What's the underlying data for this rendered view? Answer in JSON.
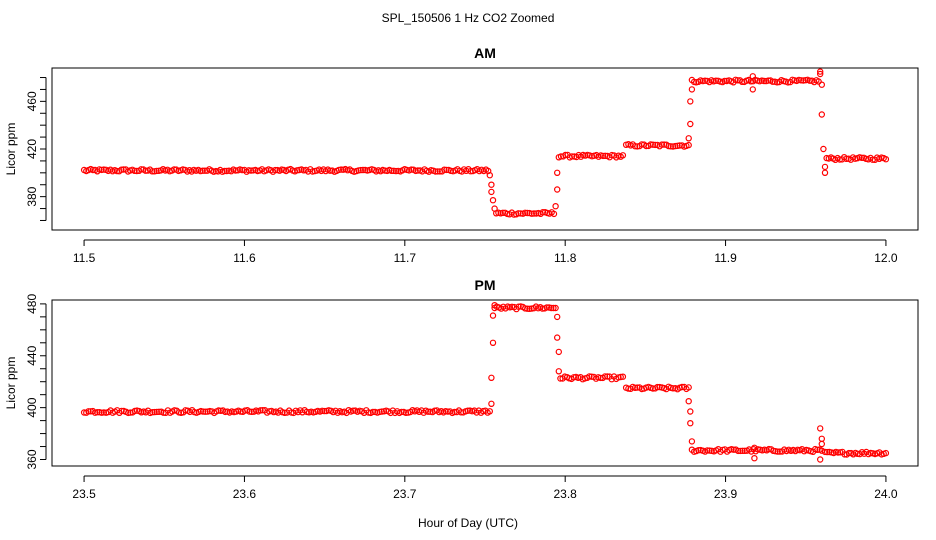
{
  "figure": {
    "title": "SPL_150506  1 Hz CO2 Zoomed",
    "xlabel": "Hour of Day (UTC)"
  },
  "chart_data": [
    {
      "type": "scatter",
      "title": "AM",
      "ylabel": "Licor ppm",
      "xlim": [
        11.48,
        12.02
      ],
      "ylim": [
        352,
        488
      ],
      "xticks": [
        11.5,
        11.6,
        11.7,
        11.8,
        11.9,
        12.0
      ],
      "xtick_labels": [
        "11.5",
        "11.6",
        "11.7",
        "11.8",
        "11.9",
        "12.0"
      ],
      "yticks": [
        380,
        420,
        460
      ],
      "ytick_labels": [
        "380",
        "420",
        "460"
      ],
      "grid": false,
      "marker_color": "#ff0000",
      "segments": [
        {
          "x_start": 11.5,
          "x_end": 11.752,
          "y": 402
        },
        {
          "x_start": 11.757,
          "x_end": 11.793,
          "y": 366
        },
        {
          "x_start": 11.796,
          "x_end": 11.836,
          "y": 414
        },
        {
          "x_start": 11.838,
          "x_end": 11.877,
          "y": 423
        },
        {
          "x_start": 11.879,
          "x_end": 11.958,
          "y": 477
        },
        {
          "x_start": 11.963,
          "x_end": 12.0,
          "y": 412
        }
      ],
      "outliers": [
        {
          "x": 11.753,
          "y": 398
        },
        {
          "x": 11.754,
          "y": 390
        },
        {
          "x": 11.754,
          "y": 384
        },
        {
          "x": 11.755,
          "y": 377
        },
        {
          "x": 11.756,
          "y": 370
        },
        {
          "x": 11.794,
          "y": 372
        },
        {
          "x": 11.795,
          "y": 386
        },
        {
          "x": 11.795,
          "y": 400
        },
        {
          "x": 11.877,
          "y": 429
        },
        {
          "x": 11.878,
          "y": 441
        },
        {
          "x": 11.878,
          "y": 460
        },
        {
          "x": 11.879,
          "y": 470
        },
        {
          "x": 11.917,
          "y": 481
        },
        {
          "x": 11.917,
          "y": 470
        },
        {
          "x": 11.959,
          "y": 485
        },
        {
          "x": 11.959,
          "y": 483
        },
        {
          "x": 11.96,
          "y": 474
        },
        {
          "x": 11.96,
          "y": 449
        },
        {
          "x": 11.961,
          "y": 420
        },
        {
          "x": 11.962,
          "y": 405
        },
        {
          "x": 11.962,
          "y": 400
        }
      ]
    },
    {
      "type": "scatter",
      "title": "PM",
      "ylabel": "Licor ppm",
      "xlim": [
        23.48,
        24.02
      ],
      "ylim": [
        355,
        483
      ],
      "xticks": [
        23.5,
        23.6,
        23.7,
        23.8,
        23.9,
        24.0
      ],
      "xtick_labels": [
        "23.5",
        "23.6",
        "23.7",
        "23.8",
        "23.9",
        "24.0"
      ],
      "yticks": [
        360,
        400,
        440,
        480
      ],
      "ytick_labels": [
        "360",
        "400",
        "440",
        "480"
      ],
      "grid": false,
      "marker_color": "#ff0000",
      "segments": [
        {
          "x_start": 23.5,
          "x_end": 23.753,
          "y": 397
        },
        {
          "x_start": 23.756,
          "x_end": 23.794,
          "y": 477
        },
        {
          "x_start": 23.797,
          "x_end": 23.836,
          "y": 423
        },
        {
          "x_start": 23.838,
          "x_end": 23.877,
          "y": 415
        },
        {
          "x_start": 23.879,
          "x_end": 23.96,
          "y": 367
        },
        {
          "x_start": 23.962,
          "x_end": 24.0,
          "y": 365
        }
      ],
      "outliers": [
        {
          "x": 23.754,
          "y": 403
        },
        {
          "x": 23.754,
          "y": 423
        },
        {
          "x": 23.755,
          "y": 450
        },
        {
          "x": 23.755,
          "y": 471
        },
        {
          "x": 23.756,
          "y": 479
        },
        {
          "x": 23.795,
          "y": 470
        },
        {
          "x": 23.795,
          "y": 454
        },
        {
          "x": 23.796,
          "y": 443
        },
        {
          "x": 23.796,
          "y": 428
        },
        {
          "x": 23.877,
          "y": 405
        },
        {
          "x": 23.878,
          "y": 397
        },
        {
          "x": 23.878,
          "y": 388
        },
        {
          "x": 23.879,
          "y": 374
        },
        {
          "x": 23.918,
          "y": 369
        },
        {
          "x": 23.918,
          "y": 361
        },
        {
          "x": 23.959,
          "y": 384
        },
        {
          "x": 23.96,
          "y": 376
        },
        {
          "x": 23.96,
          "y": 372
        },
        {
          "x": 23.959,
          "y": 360
        }
      ]
    }
  ]
}
